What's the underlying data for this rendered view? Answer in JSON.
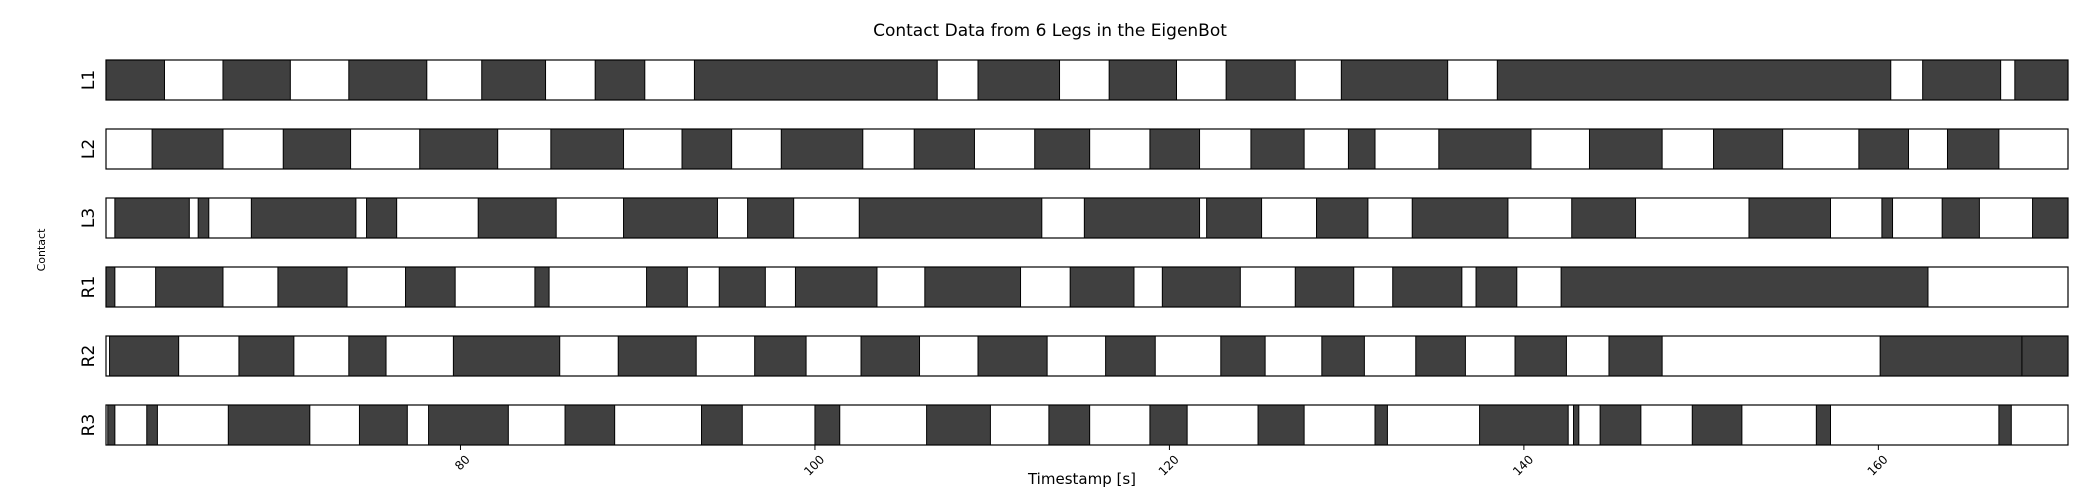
{
  "chart_data": {
    "type": "broken-bar",
    "title": "Contact Data from 6 Legs in the EigenBot",
    "xlabel": "Timestamp [s]",
    "ylabel": "Contact",
    "xlim": [
      60.0,
      170.7
    ],
    "x_ticks": [
      80,
      100,
      120,
      140,
      160
    ],
    "grid": false,
    "colors": {
      "contact": "#404040",
      "no_contact": "#ffffff",
      "edge": "#000000"
    },
    "rows": [
      {
        "name": "L1",
        "contact": [
          [
            60.0,
            63.3
          ],
          [
            66.6,
            70.4
          ],
          [
            73.7,
            78.1
          ],
          [
            81.2,
            84.8
          ],
          [
            87.6,
            90.4
          ],
          [
            93.2,
            106.9
          ],
          [
            109.2,
            113.8
          ],
          [
            116.6,
            120.4
          ],
          [
            123.2,
            127.1
          ],
          [
            129.7,
            135.7
          ],
          [
            138.5,
            160.7
          ],
          [
            162.5,
            166.9
          ],
          [
            167.7,
            170.7
          ]
        ]
      },
      {
        "name": "L2",
        "contact": [
          [
            62.6,
            66.6
          ],
          [
            70.0,
            73.8
          ],
          [
            77.7,
            82.1
          ],
          [
            85.1,
            89.2
          ],
          [
            92.5,
            95.3
          ],
          [
            98.1,
            102.7
          ],
          [
            105.6,
            109.0
          ],
          [
            112.4,
            115.5
          ],
          [
            118.9,
            121.7
          ],
          [
            124.6,
            127.6
          ],
          [
            130.1,
            131.6
          ],
          [
            135.2,
            140.4
          ],
          [
            143.7,
            147.8
          ],
          [
            150.7,
            154.6
          ],
          [
            158.9,
            161.7
          ],
          [
            163.9,
            166.8
          ]
        ]
      },
      {
        "name": "L3",
        "contact": [
          [
            60.5,
            64.7
          ],
          [
            65.2,
            65.8
          ],
          [
            68.2,
            74.1
          ],
          [
            74.7,
            76.4
          ],
          [
            81.0,
            85.4
          ],
          [
            89.2,
            94.5
          ],
          [
            96.2,
            98.8
          ],
          [
            102.5,
            112.8
          ],
          [
            115.2,
            121.7
          ],
          [
            122.1,
            125.2
          ],
          [
            128.3,
            131.2
          ],
          [
            133.7,
            139.1
          ],
          [
            142.7,
            146.3
          ],
          [
            152.7,
            157.3
          ],
          [
            160.2,
            160.8
          ],
          [
            163.6,
            165.7
          ],
          [
            168.7,
            170.7
          ]
        ]
      },
      {
        "name": "R1",
        "contact": [
          [
            60.0,
            60.5
          ],
          [
            62.8,
            66.6
          ],
          [
            69.7,
            73.6
          ],
          [
            76.9,
            79.7
          ],
          [
            84.2,
            85.0
          ],
          [
            90.5,
            92.8
          ],
          [
            94.6,
            97.2
          ],
          [
            98.9,
            103.5
          ],
          [
            106.2,
            111.6
          ],
          [
            114.4,
            118.0
          ],
          [
            119.6,
            124.0
          ],
          [
            127.1,
            130.4
          ],
          [
            132.6,
            136.5
          ],
          [
            137.3,
            139.6
          ],
          [
            142.1,
            162.8
          ]
        ]
      },
      {
        "name": "R2",
        "contact": [
          [
            60.2,
            64.1
          ],
          [
            67.5,
            70.6
          ],
          [
            73.7,
            75.8
          ],
          [
            79.6,
            85.6
          ],
          [
            88.9,
            93.3
          ],
          [
            96.6,
            99.5
          ],
          [
            102.6,
            105.9
          ],
          [
            109.2,
            113.1
          ],
          [
            116.4,
            119.2
          ],
          [
            122.9,
            125.4
          ],
          [
            128.6,
            131.0
          ],
          [
            133.9,
            136.7
          ],
          [
            139.5,
            142.4
          ],
          [
            144.8,
            147.8
          ],
          [
            160.1,
            168.6
          ],
          [
            168.1,
            170.7
          ]
        ]
      },
      {
        "name": "R3",
        "contact": [
          [
            60.1,
            60.5
          ],
          [
            62.3,
            62.9
          ],
          [
            66.9,
            71.5
          ],
          [
            74.3,
            77.0
          ],
          [
            78.2,
            82.7
          ],
          [
            85.9,
            88.7
          ],
          [
            93.6,
            95.9
          ],
          [
            100.0,
            101.4
          ],
          [
            106.3,
            109.9
          ],
          [
            113.2,
            115.5
          ],
          [
            118.9,
            121.0
          ],
          [
            125.0,
            127.6
          ],
          [
            131.6,
            132.3
          ],
          [
            137.5,
            142.5
          ],
          [
            142.8,
            143.1
          ],
          [
            144.3,
            146.6
          ],
          [
            149.5,
            152.3
          ],
          [
            156.5,
            157.3
          ],
          [
            166.8,
            167.5
          ]
        ]
      }
    ]
  }
}
